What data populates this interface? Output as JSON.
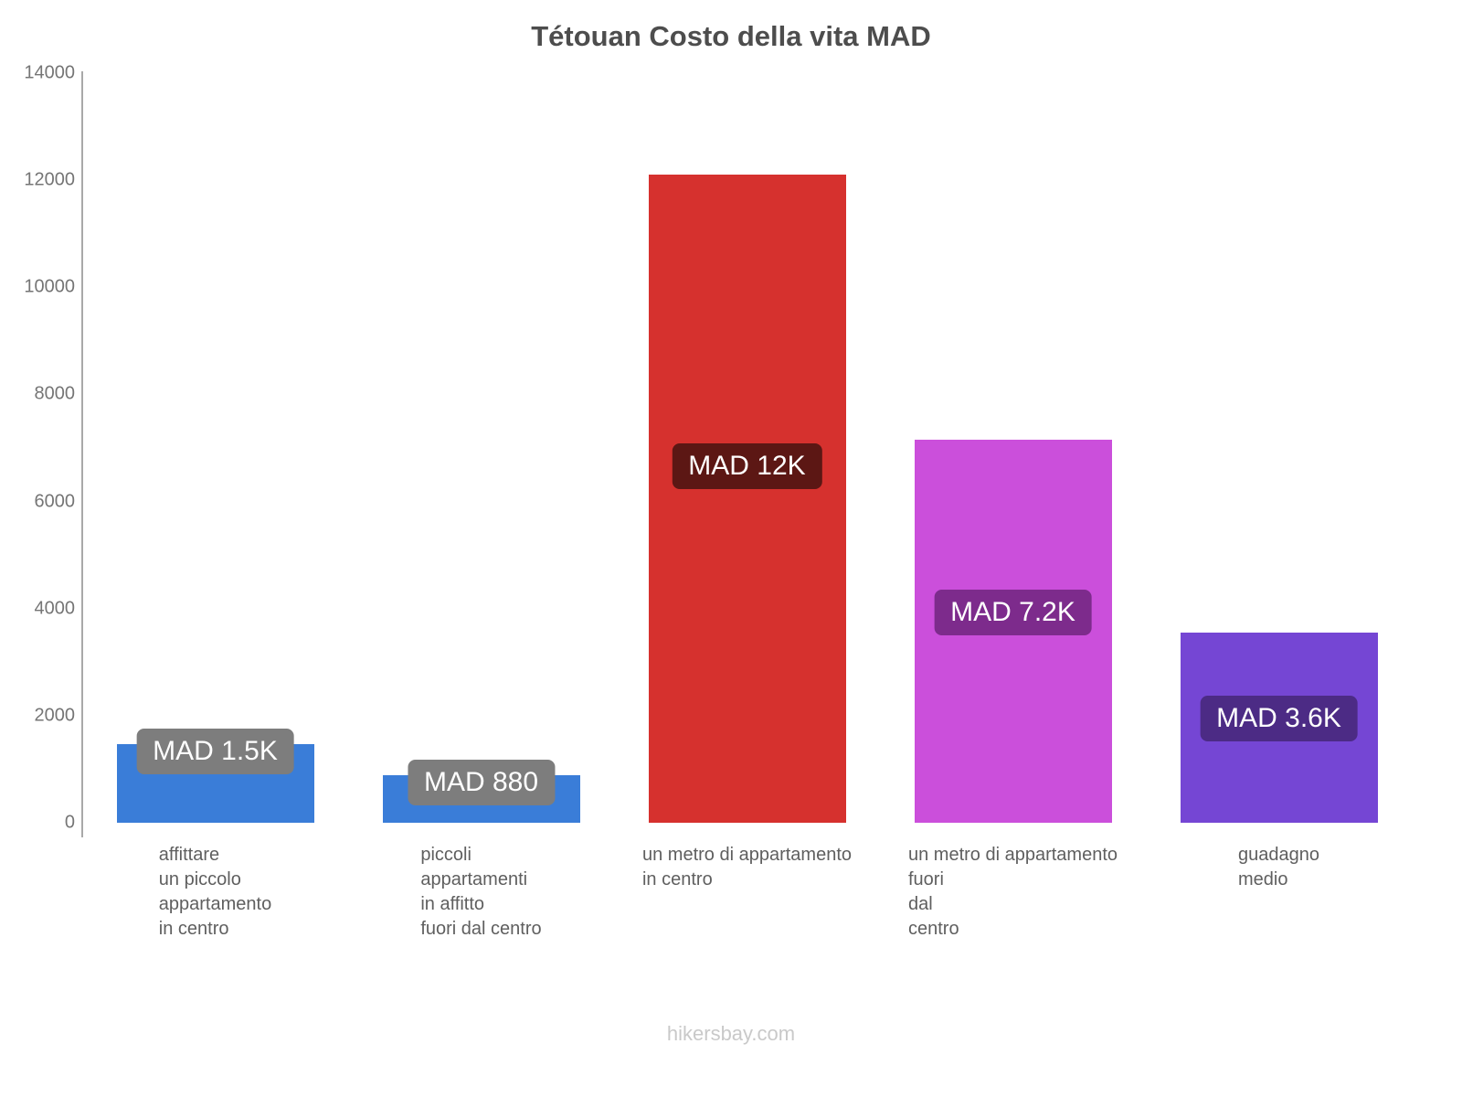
{
  "chart_data": {
    "type": "bar",
    "title": "Tétouan Costo della vita MAD",
    "xlabel": "",
    "ylabel": "",
    "ylim": [
      0,
      14000
    ],
    "yticks": [
      0,
      2000,
      4000,
      6000,
      8000,
      10000,
      12000,
      14000
    ],
    "grid": false,
    "legend": false,
    "categories": [
      "affittare\nun piccolo\nappartamento\nin centro",
      "piccoli\nappartamenti\nin affitto\nfuori dal centro",
      "un metro di appartamento\nin centro",
      "un metro di appartamento\nfuori\ndal\ncentro",
      "guadagno\nmedio"
    ],
    "points": [
      {
        "category": "affittare\nun piccolo\nappartamento\nin centro",
        "value": 1470,
        "value_label": "MAD 1.5K",
        "bar_color": "#3a7dd8",
        "badge_color": "#7d7d7d"
      },
      {
        "category": "piccoli\nappartamenti\nin affitto\nfuori dal centro",
        "value": 880,
        "value_label": "MAD 880",
        "bar_color": "#3a7dd8",
        "badge_color": "#7d7d7d"
      },
      {
        "category": "un metro di appartamento\nin centro",
        "value": 12100,
        "value_label": "MAD 12K",
        "bar_color": "#d6312e",
        "badge_color": "#5c1714"
      },
      {
        "category": "un metro di appartamento\nfuori\ndal\ncentro",
        "value": 7150,
        "value_label": "MAD 7.2K",
        "bar_color": "#cb4fdb",
        "badge_color": "#7d2b8c"
      },
      {
        "category": "guadagno\nmedio",
        "value": 3550,
        "value_label": "MAD 3.6K",
        "bar_color": "#7546d4",
        "badge_color": "#4c2b85"
      }
    ]
  },
  "footer": {
    "text": "hikersbay.com"
  }
}
